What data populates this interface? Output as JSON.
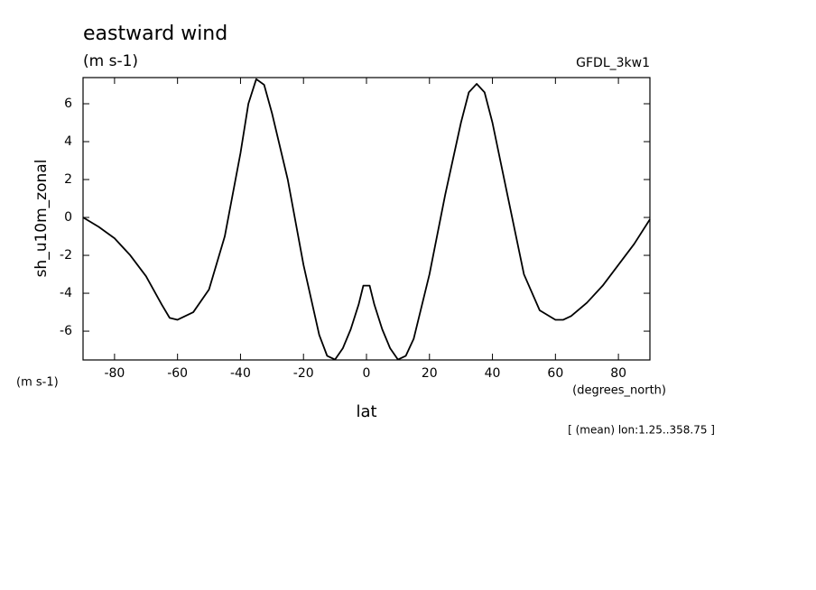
{
  "chart_data": {
    "type": "line",
    "title": "eastward wind",
    "subtitle": "(m s-1)",
    "model_label": "GFDL_3kw1",
    "ylabel": "sh_u10m_zonal",
    "y_units": "(m s-1)",
    "xlabel": "lat",
    "x_units": "(degrees_north)",
    "note": "[ (mean) lon:1.25..358.75 ]",
    "x": [
      -90,
      -85,
      -80,
      -75,
      -70,
      -65,
      -62.5,
      -60,
      -55,
      -50,
      -45,
      -40,
      -37.5,
      -35,
      -32.5,
      -30,
      -25,
      -20,
      -15,
      -12.5,
      -10,
      -7.5,
      -5,
      -2.5,
      -1,
      0,
      1,
      2.5,
      5,
      7.5,
      10,
      12.5,
      15,
      20,
      25,
      30,
      32.5,
      35,
      37.5,
      40,
      45,
      50,
      55,
      60,
      62.5,
      65,
      70,
      75,
      80,
      85,
      90
    ],
    "series": [
      {
        "name": "sh_u10m_zonal",
        "color": "#000000",
        "values": [
          0,
          -0.5,
          -1.1,
          -2.0,
          -3.1,
          -4.6,
          -5.3,
          -5.4,
          -5.0,
          -3.8,
          -1.0,
          3.4,
          6.0,
          7.3,
          7.0,
          5.5,
          2.0,
          -2.5,
          -6.2,
          -7.3,
          -7.5,
          -6.9,
          -5.9,
          -4.6,
          -3.6,
          -3.6,
          -3.6,
          -4.6,
          -5.9,
          -6.9,
          -7.5,
          -7.3,
          -6.4,
          -3.0,
          1.2,
          5.0,
          6.6,
          7.05,
          6.6,
          5.0,
          1.0,
          -3.0,
          -4.9,
          -5.4,
          -5.4,
          -5.2,
          -4.5,
          -3.6,
          -2.5,
          -1.4,
          -0.1
        ]
      }
    ],
    "xlim": [
      -90,
      90
    ],
    "ylim": [
      -7.52,
      7.38
    ],
    "xticks": [
      -80,
      -60,
      -40,
      -20,
      0,
      20,
      40,
      60,
      80
    ],
    "yticks": [
      -6,
      -4,
      -2,
      0,
      2,
      4,
      6
    ]
  }
}
